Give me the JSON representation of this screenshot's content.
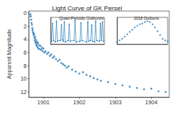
{
  "chart_data": [
    {
      "type": "scatter",
      "title": "Light Curve of GK Persei",
      "ylabel": "Apparent Magnitude",
      "color": "#1f77b4",
      "marker": "circle",
      "grid": false,
      "x": [
        1901.14,
        1901.15,
        1901.16,
        1901.17,
        1901.18,
        1901.19,
        1901.2,
        1901.21,
        1901.22,
        1901.23,
        1901.24,
        1901.25,
        1901.26,
        1901.27,
        1901.28,
        1901.29,
        1901.3,
        1901.31,
        1901.32,
        1901.33,
        1901.34,
        1901.35,
        1901.36,
        1901.38,
        1901.4,
        1901.42,
        1901.44,
        1901.46,
        1901.48,
        1901.5,
        1901.53,
        1901.56,
        1901.6,
        1901.64,
        1901.68,
        1901.72,
        1901.76,
        1901.8,
        1901.85,
        1901.9,
        1901.95,
        1902.0,
        1902.05,
        1902.1,
        1902.15,
        1902.2,
        1902.3,
        1902.4,
        1902.5,
        1902.6,
        1902.7,
        1902.8,
        1902.9,
        1903.0,
        1903.1,
        1903.3,
        1903.5,
        1903.7,
        1903.9,
        1904.1,
        1904.3,
        1904.5,
        1904.7,
        1904.9
      ],
      "values": [
        0.2,
        0.5,
        1.0,
        1.5,
        1.8,
        2.3,
        2.6,
        2.9,
        3.1,
        3.4,
        3.2,
        3.8,
        4.2,
        3.6,
        4.5,
        4.0,
        4.8,
        4.3,
        5.0,
        4.5,
        5.2,
        4.6,
        5.4,
        4.9,
        5.5,
        5.0,
        5.6,
        5.3,
        5.8,
        5.4,
        6.0,
        5.8,
        6.2,
        6.0,
        6.5,
        6.3,
        6.8,
        6.6,
        7.0,
        7.3,
        7.1,
        7.6,
        7.8,
        8.0,
        8.3,
        8.1,
        8.6,
        8.9,
        9.2,
        9.0,
        9.4,
        9.6,
        9.9,
        10.1,
        10.3,
        10.5,
        10.8,
        11.0,
        11.2,
        11.4,
        11.6,
        11.5,
        11.9,
        12.0
      ],
      "xlim": [
        1901.1,
        1905.0
      ],
      "xticks": [
        {
          "value": 1901.5,
          "label": "1901"
        },
        {
          "value": 1902.5,
          "label": "1902"
        },
        {
          "value": 1903.5,
          "label": "1903"
        },
        {
          "value": 1904.5,
          "label": "1904"
        }
      ],
      "ylim": [
        12.8,
        -0.3
      ],
      "yticks": [
        0,
        2,
        4,
        6,
        8,
        10,
        12
      ]
    },
    {
      "type": "line",
      "title": "Quasi-Periodic Outbursts",
      "color": "#1f77b4",
      "marker": "circle",
      "line_style": "solid",
      "grid": false,
      "tick_labels": false,
      "x": [
        1966,
        1967,
        1968,
        1970,
        1971,
        1972,
        1975,
        1976,
        1977,
        1978,
        1979,
        1980,
        1983,
        1984,
        1985,
        1989,
        1990,
        1991,
        1995,
        1996,
        1997,
        2002,
        2003,
        2004,
        2006,
        2007,
        2008,
        2010,
        2011,
        2012,
        2015,
        2016,
        2017,
        2018,
        2019
      ],
      "values": [
        13.1,
        10.8,
        13.0,
        13.2,
        10.5,
        13.1,
        13.0,
        11.0,
        12.9,
        13.1,
        10.6,
        13.2,
        13.0,
        10.9,
        13.1,
        13.0,
        10.4,
        13.2,
        13.1,
        10.7,
        13.0,
        13.2,
        10.6,
        13.1,
        13.0,
        11.0,
        13.1,
        13.2,
        10.5,
        13.0,
        13.1,
        10.8,
        13.0,
        10.6,
        13.1
      ],
      "xlim": [
        1965,
        2020
      ],
      "ylim": [
        13.5,
        10
      ]
    },
    {
      "type": "scatter",
      "title": "2018 Outburst",
      "color": "#1f77b4",
      "marker": "circle",
      "grid": false,
      "tick_labels": false,
      "x": [
        0,
        5,
        10,
        15,
        20,
        25,
        30,
        35,
        40,
        45,
        50,
        55,
        60,
        65,
        70,
        75,
        80,
        85,
        90,
        95,
        100
      ],
      "values": [
        13.2,
        13.0,
        12.8,
        12.5,
        12.2,
        11.9,
        11.6,
        11.3,
        11.1,
        10.9,
        10.8,
        10.6,
        10.5,
        10.6,
        10.9,
        11.3,
        11.8,
        12.3,
        12.8,
        13.0,
        13.1
      ],
      "xlim": [
        0,
        100
      ],
      "ylim": [
        13.5,
        10
      ]
    }
  ]
}
